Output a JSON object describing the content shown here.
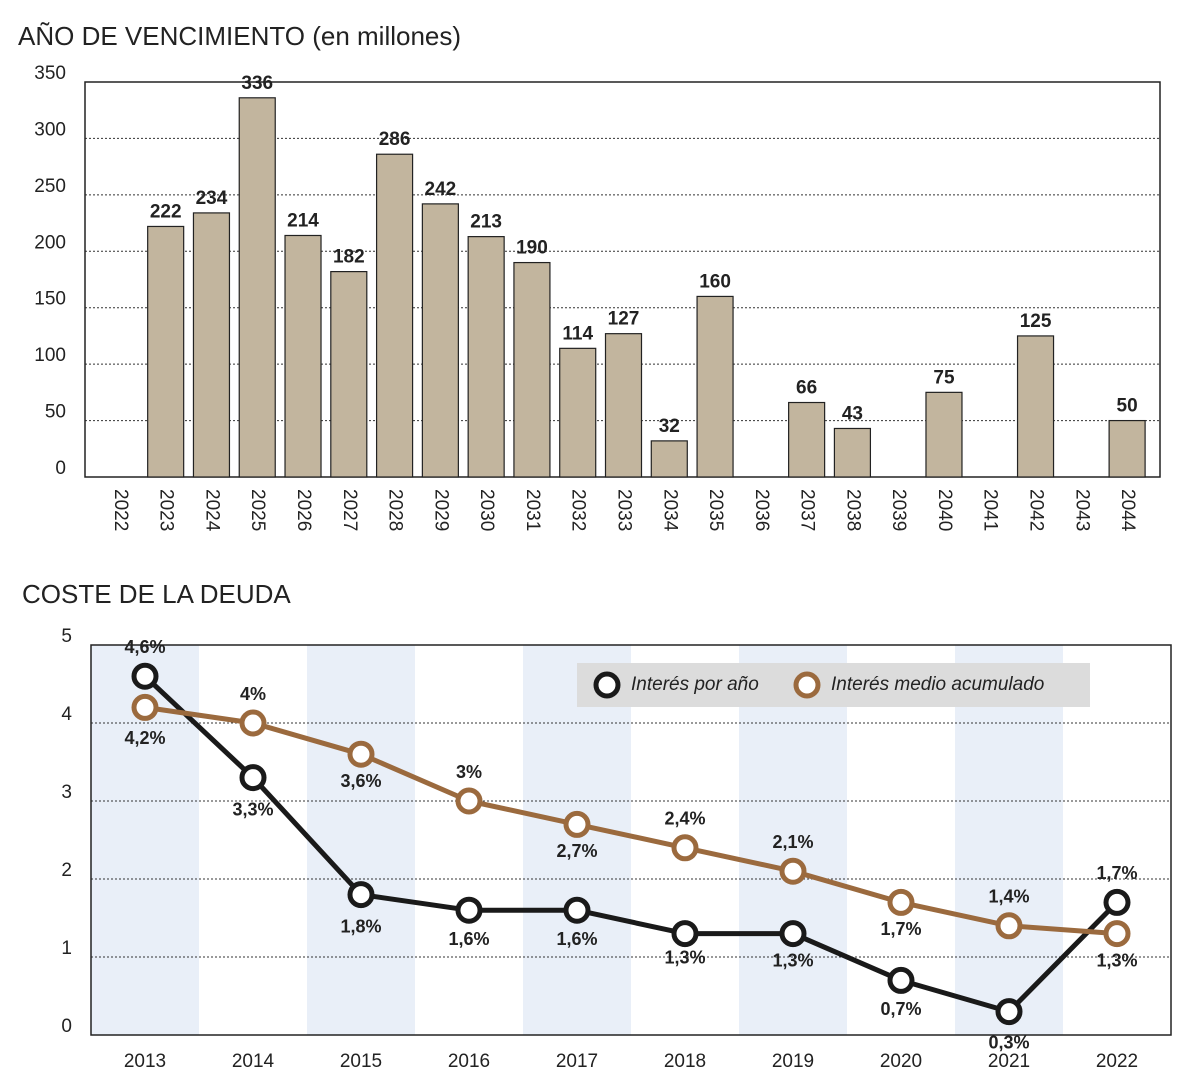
{
  "chart_data": [
    {
      "type": "bar",
      "title": "AÑO DE VENCIMIENTO (en millones)",
      "categories": [
        "2022",
        "2023",
        "2024",
        "2025",
        "2026",
        "2027",
        "2028",
        "2029",
        "2030",
        "2031",
        "2032",
        "2033",
        "2034",
        "2035",
        "2036",
        "2037",
        "2038",
        "2039",
        "2040",
        "2041",
        "2042",
        "2043",
        "2044"
      ],
      "values": [
        null,
        222,
        234,
        336,
        214,
        182,
        286,
        242,
        213,
        190,
        114,
        127,
        32,
        160,
        null,
        66,
        43,
        null,
        75,
        null,
        125,
        null,
        50
      ],
      "color": "#c2b59e",
      "ylim": [
        0,
        350
      ],
      "yticks": [
        0,
        50,
        100,
        150,
        200,
        250,
        300,
        350
      ],
      "grid": true
    },
    {
      "type": "line",
      "title": "COSTE DE LA DEUDA",
      "categories": [
        "2013",
        "2014",
        "2015",
        "2016",
        "2017",
        "2018",
        "2019",
        "2020",
        "2021",
        "2022"
      ],
      "series": [
        {
          "name": "Interés por año",
          "color": "#1a1a1a",
          "values": [
            4.6,
            3.3,
            1.8,
            1.6,
            1.6,
            1.3,
            1.3,
            0.7,
            0.3,
            1.7
          ],
          "value_labels": [
            "4,6%",
            "3,3%",
            "1,8%",
            "1,6%",
            "1,6%",
            "1,3%",
            "1,3%",
            "0,7%",
            "0,3%",
            "1,7%"
          ]
        },
        {
          "name": "Interés medio acumulado",
          "color": "#9b6a3e",
          "values": [
            4.2,
            4,
            3.6,
            3,
            2.7,
            2.4,
            2.1,
            1.7,
            1.4,
            1.3
          ],
          "value_labels": [
            "4,2%",
            "4%",
            "3,6%",
            "3%",
            "2,7%",
            "2,4%",
            "2,1%",
            "1,7%",
            "1,4%",
            "1,3%"
          ]
        }
      ],
      "ylim": [
        0,
        5
      ],
      "yticks": [
        0,
        1,
        2,
        3,
        4,
        5
      ],
      "grid": true,
      "legend": "top-right"
    }
  ]
}
